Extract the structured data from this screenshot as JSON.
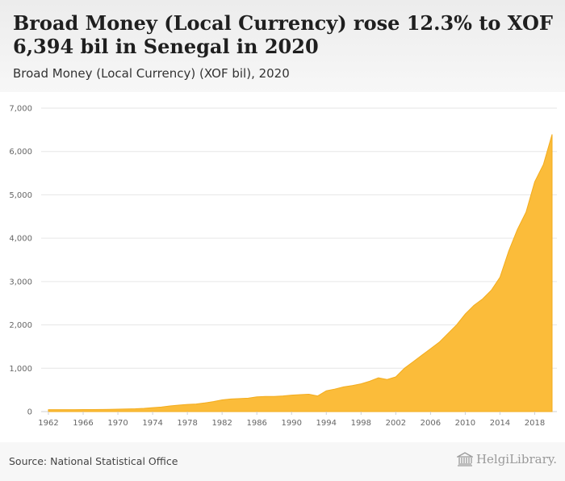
{
  "header": {
    "title": "Broad Money (Local Currency) rose 12.3% to XOF 6,394 bil in Senegal in 2020",
    "subtitle": "Broad Money (Local Currency) (XOF bil), 2020"
  },
  "footer": {
    "source": "Source: National Statistical Office",
    "logo_text": "HelgiLibrary."
  },
  "colors": {
    "area": "#fbbc3a",
    "area_stroke": "#f3ac1d",
    "grid": "#e6e6e6"
  },
  "chart_data": {
    "type": "area",
    "title": "Broad Money (Local Currency) rose 12.3% to XOF 6,394 bil in Senegal in 2020",
    "xlabel": "",
    "ylabel": "",
    "ylim": [
      0,
      7000
    ],
    "xlim": [
      1962,
      2020
    ],
    "yticks": [
      0,
      1000,
      2000,
      3000,
      4000,
      5000,
      6000,
      7000
    ],
    "ytick_labels": [
      "0",
      "1,000",
      "2,000",
      "3,000",
      "4,000",
      "5,000",
      "6,000",
      "7,000"
    ],
    "xticks": [
      1962,
      1966,
      1970,
      1974,
      1978,
      1982,
      1986,
      1990,
      1994,
      1998,
      2002,
      2006,
      2010,
      2014,
      2018
    ],
    "grid": true,
    "legend": "none",
    "series": [
      {
        "x": [
          1962,
          1963,
          1964,
          1965,
          1966,
          1967,
          1968,
          1969,
          1970,
          1971,
          1972,
          1973,
          1974,
          1975,
          1976,
          1977,
          1978,
          1979,
          1980,
          1981,
          1982,
          1983,
          1984,
          1985,
          1986,
          1987,
          1988,
          1989,
          1990,
          1991,
          1992,
          1993,
          1994,
          1995,
          1996,
          1997,
          1998,
          1999,
          2000,
          2001,
          2002,
          2003,
          2004,
          2005,
          2006,
          2007,
          2008,
          2009,
          2010,
          2011,
          2012,
          2013,
          2014,
          2015,
          2016,
          2017,
          2018,
          2019,
          2020
        ],
        "values": [
          45,
          45,
          45,
          45,
          46,
          47,
          48,
          50,
          55,
          60,
          65,
          75,
          90,
          105,
          130,
          150,
          165,
          175,
          200,
          230,
          270,
          290,
          300,
          310,
          340,
          350,
          350,
          360,
          380,
          390,
          400,
          360,
          480,
          520,
          570,
          600,
          640,
          700,
          780,
          740,
          800,
          1000,
          1150,
          1300,
          1450,
          1600,
          1800,
          2000,
          2250,
          2450,
          2600,
          2800,
          3100,
          3700,
          4200,
          4600,
          5300,
          5700,
          6394
        ]
      }
    ]
  }
}
